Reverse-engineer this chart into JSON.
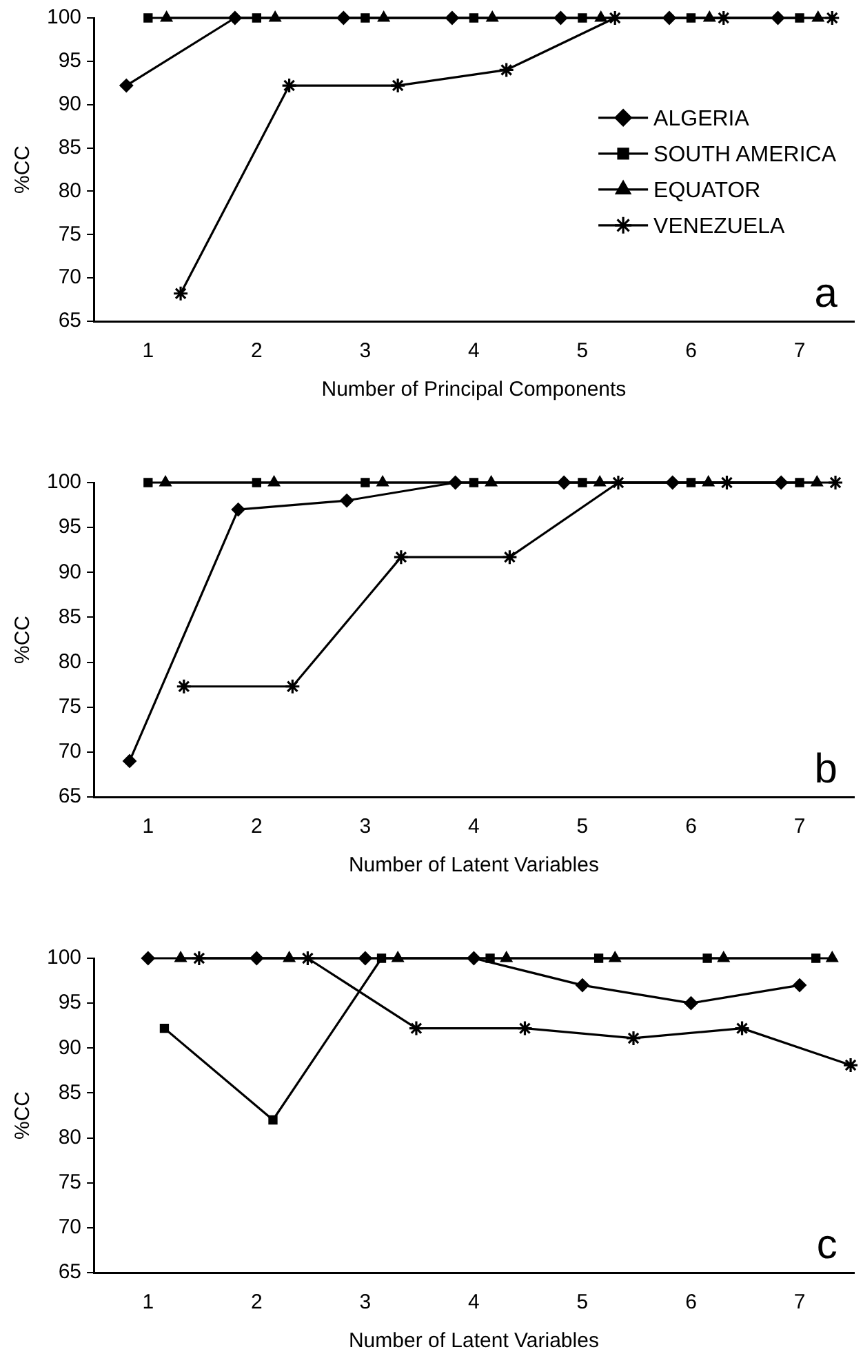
{
  "chart_data": [
    {
      "type": "line",
      "xlabel": "Number of Principal Components",
      "ylabel": "%CC",
      "xlim": [
        0.5,
        7.5
      ],
      "xticks": [
        1,
        2,
        3,
        4,
        5,
        6,
        7
      ],
      "ylim": [
        65,
        100
      ],
      "yticks": [
        65,
        70,
        75,
        80,
        85,
        90,
        95,
        100
      ],
      "legend": "right",
      "annotations": [
        "a"
      ],
      "series": [
        {
          "name": "ALGERIA",
          "color": "#000000",
          "marker": "diamond",
          "x": [
            0.8,
            1.8,
            2.8,
            3.8,
            4.8,
            5.8,
            6.8
          ],
          "values": [
            92.2,
            100,
            100,
            100,
            100,
            100,
            100
          ]
        },
        {
          "name": "SOUTH AMERICA",
          "color": "#000000",
          "marker": "square",
          "x": [
            1,
            2,
            3,
            4,
            5,
            6,
            7
          ],
          "values": [
            100,
            100,
            100,
            100,
            100,
            100,
            100
          ]
        },
        {
          "name": "EQUATOR",
          "color": "#000000",
          "marker": "triangle",
          "x": [
            1.17,
            2.17,
            3.17,
            4.17,
            5.17,
            6.17,
            7.17
          ],
          "values": [
            100,
            100,
            100,
            100,
            100,
            100,
            100
          ]
        },
        {
          "name": "VENEZUELA",
          "color": "#000000",
          "marker": "cross",
          "x": [
            1.3,
            2.3,
            3.3,
            4.3,
            5.3,
            6.3,
            7.3
          ],
          "values": [
            68.2,
            92.2,
            92.2,
            94,
            100,
            100,
            100
          ]
        }
      ]
    },
    {
      "type": "line",
      "xlabel": "Number of Latent Variables",
      "ylabel": "%CC",
      "xlim": [
        0.5,
        7.5
      ],
      "xticks": [
        1,
        2,
        3,
        4,
        5,
        6,
        7
      ],
      "ylim": [
        65,
        100
      ],
      "yticks": [
        65,
        70,
        75,
        80,
        85,
        90,
        95,
        100
      ],
      "annotations": [
        "b"
      ],
      "series": [
        {
          "color": "#000000",
          "marker": "diamond",
          "x": [
            0.83,
            1.83,
            2.83,
            3.83,
            4.83,
            5.83,
            6.83
          ],
          "values": [
            69,
            97,
            98,
            100,
            100,
            100,
            100
          ]
        },
        {
          "color": "#000000",
          "marker": "square",
          "x": [
            1,
            2,
            3,
            4,
            5,
            6,
            7
          ],
          "values": [
            100,
            100,
            100,
            100,
            100,
            100,
            100
          ]
        },
        {
          "color": "#000000",
          "marker": "triangle",
          "x": [
            1.16,
            2.16,
            3.16,
            4.16,
            5.16,
            6.16,
            7.16
          ],
          "values": [
            100,
            100,
            100,
            100,
            100,
            100,
            100
          ]
        },
        {
          "color": "#000000",
          "marker": "cross",
          "x": [
            1.33,
            2.33,
            3.33,
            4.33,
            5.33,
            6.33,
            7.33
          ],
          "values": [
            77.3,
            77.3,
            91.7,
            91.7,
            100,
            100,
            100
          ]
        }
      ]
    },
    {
      "type": "line",
      "xlabel": "Number of Latent Variables",
      "ylabel": "%CC",
      "xlim": [
        0.5,
        7.5
      ],
      "xticks": [
        1,
        2,
        3,
        4,
        5,
        6,
        7
      ],
      "ylim": [
        65,
        100
      ],
      "yticks": [
        65,
        70,
        75,
        80,
        85,
        90,
        95,
        100
      ],
      "annotations": [
        "c"
      ],
      "series": [
        {
          "color": "#000000",
          "marker": "diamond",
          "x": [
            1,
            2,
            3,
            4,
            5,
            6,
            7
          ],
          "values": [
            100,
            100,
            100,
            100,
            97,
            95,
            97
          ]
        },
        {
          "color": "#000000",
          "marker": "square",
          "x": [
            1.15,
            2.15,
            3.15,
            4.15,
            5.15,
            6.15,
            7.15
          ],
          "values": [
            92.2,
            82,
            100,
            100,
            100,
            100,
            100
          ]
        },
        {
          "color": "#000000",
          "marker": "triangle",
          "x": [
            1.3,
            2.3,
            3.3,
            4.3,
            5.3,
            6.3,
            7.3
          ],
          "values": [
            100,
            100,
            100,
            100,
            100,
            100,
            100
          ]
        },
        {
          "color": "#000000",
          "marker": "cross",
          "x": [
            1.47,
            2.47,
            3.47,
            4.47,
            5.47,
            6.47,
            7.47
          ],
          "values": [
            100,
            100,
            92.2,
            92.2,
            91.1,
            92.2,
            88.1
          ]
        }
      ]
    }
  ]
}
